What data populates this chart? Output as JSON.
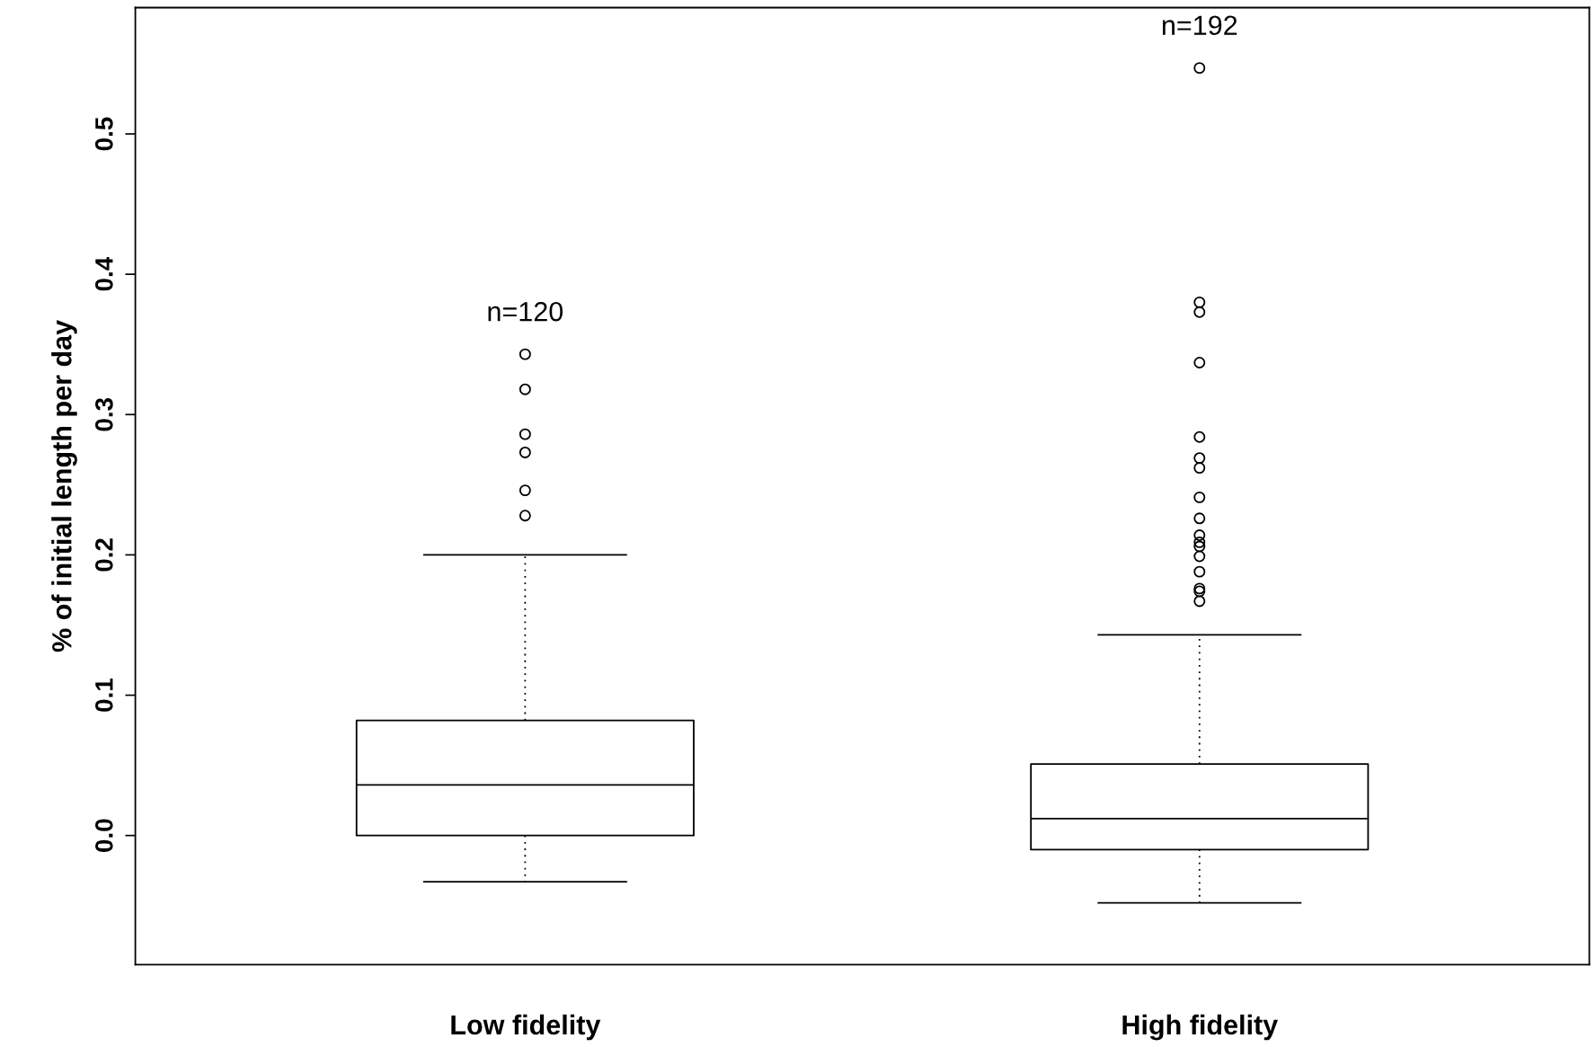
{
  "chart_data": {
    "type": "box",
    "ylabel": "% of initial length per day",
    "categories": [
      "Low fidelity",
      "High fidelity"
    ],
    "boxes": [
      {
        "low": -0.033,
        "q1": 0.0,
        "median": 0.036,
        "q3": 0.082,
        "high": 0.2,
        "outliers": [
          0.343,
          0.318,
          0.286,
          0.273,
          0.246,
          0.228
        ]
      },
      {
        "low": -0.048,
        "q1": -0.01,
        "median": 0.012,
        "q3": 0.051,
        "high": 0.143,
        "outliers": [
          0.547,
          0.38,
          0.373,
          0.337,
          0.284,
          0.269,
          0.262,
          0.241,
          0.226,
          0.214,
          0.209,
          0.206,
          0.199,
          0.188,
          0.176,
          0.174,
          0.167
        ]
      }
    ],
    "ylim": [
      -0.092,
      0.59
    ],
    "yticks": [
      {
        "value": 0.0,
        "label": "0.0"
      },
      0.1,
      0.2,
      0.3,
      0.4,
      0.5
    ],
    "annotations": [
      "n=120",
      "n=192"
    ],
    "grid": false
  }
}
